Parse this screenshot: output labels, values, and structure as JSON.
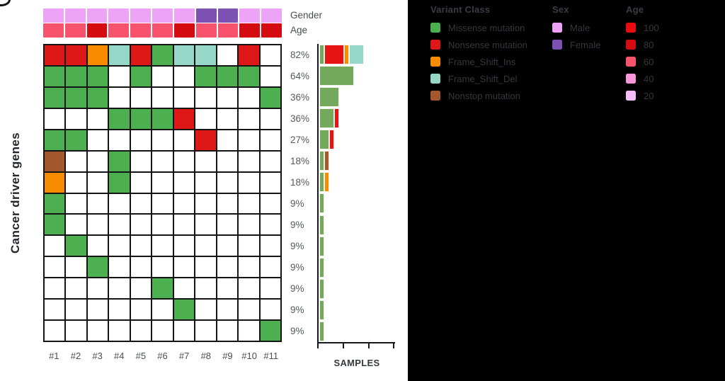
{
  "colors": {
    "missense": "#4CAF50",
    "nonsense": "#DE1717",
    "frame_shift_ins": "#F78C00",
    "frame_shift_del": "#96D7C8",
    "nonstop": "#A5582E",
    "empty": "#FFFFFF",
    "male": "#EDA4F6",
    "female": "#7D52B3",
    "age100": "#EA0B11",
    "age80": "#D40C12",
    "age60": "#F7536D",
    "age40": "#F995DA",
    "age20": "#F5BDF8"
  },
  "bar_colors": {
    "missense": "#74A95C",
    "nonsense": "#E51313",
    "frame_shift_ins": "#F78C00",
    "frame_shift_del": "#96D7C8",
    "nonstop": "#A5582E"
  },
  "annotations": {
    "gender_label": "Gender",
    "age_label": "Age"
  },
  "chart_data": {
    "type": "heatmap",
    "subtype": "oncoprint",
    "y_axis_title": "Cancer driver genes",
    "bar_xlabel": "SAMPLES",
    "legend_position": "top-right",
    "samples": [
      "#1",
      "#2",
      "#3",
      "#4",
      "#5",
      "#6",
      "#7",
      "#8",
      "#9",
      "#10",
      "#11"
    ],
    "gender": [
      "male",
      "male",
      "male",
      "male",
      "male",
      "male",
      "male",
      "female",
      "female",
      "male",
      "male"
    ],
    "age": [
      "age60",
      "age60",
      "age80",
      "age60",
      "age60",
      "age60",
      "age80",
      "age60",
      "age60",
      "age80",
      "age80"
    ],
    "rows": [
      {
        "percent": "82%",
        "cells": [
          "nonsense",
          "nonsense",
          "frame_shift_ins",
          "frame_shift_del",
          "nonsense",
          "missense",
          "frame_shift_del",
          "frame_shift_del",
          "empty",
          "nonsense",
          "empty"
        ],
        "bar": [
          [
            "missense",
            1
          ],
          [
            "nonsense",
            4
          ],
          [
            "frame_shift_ins",
            1
          ],
          [
            "frame_shift_del",
            3
          ]
        ]
      },
      {
        "percent": "64%",
        "cells": [
          "missense",
          "missense",
          "missense",
          "empty",
          "missense",
          "empty",
          "empty",
          "missense",
          "missense",
          "missense",
          "empty"
        ],
        "bar": [
          [
            "missense",
            7
          ]
        ]
      },
      {
        "percent": "36%",
        "cells": [
          "missense",
          "missense",
          "missense",
          "empty",
          "empty",
          "empty",
          "empty",
          "empty",
          "empty",
          "empty",
          "missense"
        ],
        "bar": [
          [
            "missense",
            4
          ]
        ]
      },
      {
        "percent": "36%",
        "cells": [
          "empty",
          "empty",
          "empty",
          "missense",
          "missense",
          "missense",
          "nonsense",
          "empty",
          "empty",
          "empty",
          "empty"
        ],
        "bar": [
          [
            "missense",
            3
          ],
          [
            "nonsense",
            1
          ]
        ]
      },
      {
        "percent": "27%",
        "cells": [
          "missense",
          "missense",
          "empty",
          "empty",
          "empty",
          "empty",
          "empty",
          "nonsense",
          "empty",
          "empty",
          "empty"
        ],
        "bar": [
          [
            "missense",
            2
          ],
          [
            "nonsense",
            1
          ]
        ]
      },
      {
        "percent": "18%",
        "cells": [
          "nonstop",
          "empty",
          "empty",
          "missense",
          "empty",
          "empty",
          "empty",
          "empty",
          "empty",
          "empty",
          "empty"
        ],
        "bar": [
          [
            "missense",
            1
          ],
          [
            "nonstop",
            1
          ]
        ]
      },
      {
        "percent": "18%",
        "cells": [
          "frame_shift_ins",
          "empty",
          "empty",
          "missense",
          "empty",
          "empty",
          "empty",
          "empty",
          "empty",
          "empty",
          "empty"
        ],
        "bar": [
          [
            "missense",
            1
          ],
          [
            "frame_shift_ins",
            1
          ]
        ]
      },
      {
        "percent": "9%",
        "cells": [
          "missense",
          "empty",
          "empty",
          "empty",
          "empty",
          "empty",
          "empty",
          "empty",
          "empty",
          "empty",
          "empty"
        ],
        "bar": [
          [
            "missense",
            1
          ]
        ]
      },
      {
        "percent": "9%",
        "cells": [
          "missense",
          "empty",
          "empty",
          "empty",
          "empty",
          "empty",
          "empty",
          "empty",
          "empty",
          "empty",
          "empty"
        ],
        "bar": [
          [
            "missense",
            1
          ]
        ]
      },
      {
        "percent": "9%",
        "cells": [
          "empty",
          "missense",
          "empty",
          "empty",
          "empty",
          "empty",
          "empty",
          "empty",
          "empty",
          "empty",
          "empty"
        ],
        "bar": [
          [
            "missense",
            1
          ]
        ]
      },
      {
        "percent": "9%",
        "cells": [
          "empty",
          "empty",
          "missense",
          "empty",
          "empty",
          "empty",
          "empty",
          "empty",
          "empty",
          "empty",
          "empty"
        ],
        "bar": [
          [
            "missense",
            1
          ]
        ]
      },
      {
        "percent": "9%",
        "cells": [
          "empty",
          "empty",
          "empty",
          "empty",
          "empty",
          "missense",
          "empty",
          "empty",
          "empty",
          "empty",
          "empty"
        ],
        "bar": [
          [
            "missense",
            1
          ]
        ]
      },
      {
        "percent": "9%",
        "cells": [
          "empty",
          "empty",
          "empty",
          "empty",
          "empty",
          "empty",
          "missense",
          "empty",
          "empty",
          "empty",
          "empty"
        ],
        "bar": [
          [
            "missense",
            1
          ]
        ]
      },
      {
        "percent": "9%",
        "cells": [
          "empty",
          "empty",
          "empty",
          "empty",
          "empty",
          "empty",
          "empty",
          "empty",
          "empty",
          "empty",
          "missense"
        ],
        "bar": [
          [
            "missense",
            1
          ]
        ]
      }
    ]
  },
  "legend": {
    "variant_class": {
      "title": "Variant Class",
      "items": [
        {
          "label": "Missense mutation",
          "color": "missense"
        },
        {
          "label": "Nonsense mutation",
          "color": "nonsense"
        },
        {
          "label": "Frame_Shift_Ins",
          "color": "frame_shift_ins"
        },
        {
          "label": "Frame_Shift_Del",
          "color": "frame_shift_del"
        },
        {
          "label": "Nonstop mutation",
          "color": "nonstop"
        }
      ]
    },
    "sex": {
      "title": "Sex",
      "items": [
        {
          "label": "Male",
          "color": "male"
        },
        {
          "label": "Female",
          "color": "female"
        }
      ]
    },
    "age": {
      "title": "Age",
      "items": [
        {
          "label": "100",
          "color": "age100"
        },
        {
          "label": "80",
          "color": "age80"
        },
        {
          "label": "60",
          "color": "age60"
        },
        {
          "label": "40",
          "color": "age40"
        },
        {
          "label": "20",
          "color": "age20"
        }
      ]
    }
  }
}
